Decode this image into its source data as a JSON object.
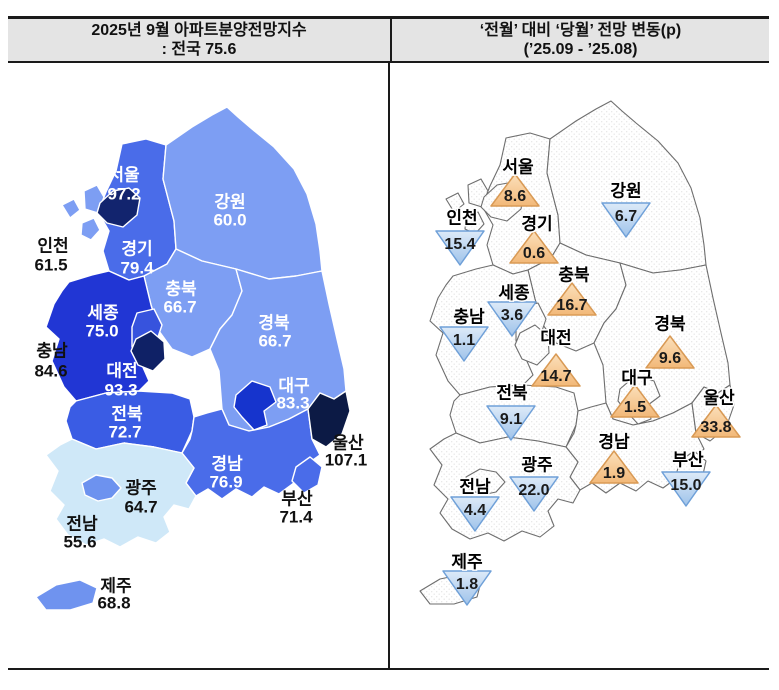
{
  "header": {
    "left_title_line1": "2025년 9월 아파트분양전망지수",
    "left_title_line2": ": 전국 75.6",
    "right_title_line1": "‘전월’ 대비 ‘당월’ 전망 변동(p)",
    "right_title_line2": "(’25.09  -  ’25.08)"
  },
  "chart_data": [
    {
      "type": "choropleth-map",
      "title": "2025년 9월 아파트분양전망지수",
      "subtitle": ": 전국 75.6",
      "national_label": "전국",
      "national_value": 75.6,
      "unit": "지수(p)",
      "regions": [
        {
          "id": "gangwon",
          "name": "강원",
          "value": "60.0",
          "fill": "#7d9ef3",
          "label_color": "#ffffff"
        },
        {
          "id": "gyeonggi",
          "name": "경기",
          "value": "79.4",
          "fill": "#4a6ce9",
          "label_color": "#ffffff"
        },
        {
          "id": "incheon",
          "name": "인천",
          "value": "61.5",
          "fill": "#7d9ef3",
          "label_color": "#111111"
        },
        {
          "id": "seoul",
          "name": "서울",
          "value": "97.2",
          "fill": "#12246e",
          "label_color": "#ffffff"
        },
        {
          "id": "chungbuk",
          "name": "충북",
          "value": "66.7",
          "fill": "#7d9ef3",
          "label_color": "#ffffff"
        },
        {
          "id": "chungnam",
          "name": "충남",
          "value": "84.6",
          "fill": "#2136d4",
          "label_color": "#111111"
        },
        {
          "id": "sejong",
          "name": "세종",
          "value": "75.0",
          "fill": "#3753dd",
          "label_color": "#ffffff"
        },
        {
          "id": "daejeon",
          "name": "대전",
          "value": "93.3",
          "fill": "#0f2166",
          "label_color": "#ffffff"
        },
        {
          "id": "gyeongbuk",
          "name": "경북",
          "value": "66.7",
          "fill": "#7d9ef3",
          "label_color": "#ffffff"
        },
        {
          "id": "daegu",
          "name": "대구",
          "value": "83.3",
          "fill": "#1634cd",
          "label_color": "#ffffff"
        },
        {
          "id": "ulsan",
          "name": "울산",
          "value": "107.1",
          "fill": "#0c1a45",
          "label_color": "#111111"
        },
        {
          "id": "jeonbuk",
          "name": "전북",
          "value": "72.7",
          "fill": "#3a5ce4",
          "label_color": "#ffffff"
        },
        {
          "id": "gyeongnam",
          "name": "경남",
          "value": "76.9",
          "fill": "#4a6ce9",
          "label_color": "#ffffff"
        },
        {
          "id": "busan",
          "name": "부산",
          "value": "71.4",
          "fill": "#4a6ce9",
          "label_color": "#111111"
        },
        {
          "id": "gwangju",
          "name": "광주",
          "value": "64.7",
          "fill": "#6d92ef",
          "label_color": "#111111"
        },
        {
          "id": "jeonnam",
          "name": "전남",
          "value": "55.6",
          "fill": "#cfe8f8",
          "label_color": "#111111"
        },
        {
          "id": "jeju",
          "name": "제주",
          "value": "68.8",
          "fill": "#6f93ef",
          "label_color": "#111111"
        }
      ]
    },
    {
      "type": "symbol-map",
      "title": "‘전월’ 대비 ‘당월’ 전망 변동(p)",
      "subtitle": "(’25.09 - ’25.08)",
      "up_fill_top": "#fbe0bb",
      "up_fill_bottom": "#f2b878",
      "up_stroke": "#d99a55",
      "down_fill_top": "#ddeaf8",
      "down_fill_bottom": "#9fc3ea",
      "down_stroke": "#6fa0d8",
      "map_border_color": "#6e6e6e",
      "changes": [
        {
          "id": "seoul",
          "name": "서울",
          "change": "8.6",
          "direction": "up"
        },
        {
          "id": "gangwon",
          "name": "강원",
          "change": "6.7",
          "direction": "down"
        },
        {
          "id": "incheon",
          "name": "인천",
          "change": "15.4",
          "direction": "down"
        },
        {
          "id": "gyeonggi",
          "name": "경기",
          "change": "0.6",
          "direction": "up"
        },
        {
          "id": "chungbuk",
          "name": "충북",
          "change": "16.7",
          "direction": "up"
        },
        {
          "id": "sejong",
          "name": "세종",
          "change": "3.6",
          "direction": "down"
        },
        {
          "id": "chungnam",
          "name": "충남",
          "change": "1.1",
          "direction": "down"
        },
        {
          "id": "gyeongbuk",
          "name": "경북",
          "change": "9.6",
          "direction": "up"
        },
        {
          "id": "daejeon",
          "name": "대전",
          "change": "14.7",
          "direction": "up"
        },
        {
          "id": "daegu",
          "name": "대구",
          "change": "1.5",
          "direction": "up"
        },
        {
          "id": "ulsan",
          "name": "울산",
          "change": "33.8",
          "direction": "up"
        },
        {
          "id": "jeonbuk",
          "name": "전북",
          "change": "9.1",
          "direction": "down"
        },
        {
          "id": "gyeongnam",
          "name": "경남",
          "change": "1.9",
          "direction": "up"
        },
        {
          "id": "busan",
          "name": "부산",
          "change": "15.0",
          "direction": "down"
        },
        {
          "id": "gwangju",
          "name": "광주",
          "change": "22.0",
          "direction": "down"
        },
        {
          "id": "jeonnam",
          "name": "전남",
          "change": "4.4",
          "direction": "down"
        },
        {
          "id": "jeju",
          "name": "제주",
          "change": "1.8",
          "direction": "down"
        }
      ]
    }
  ]
}
